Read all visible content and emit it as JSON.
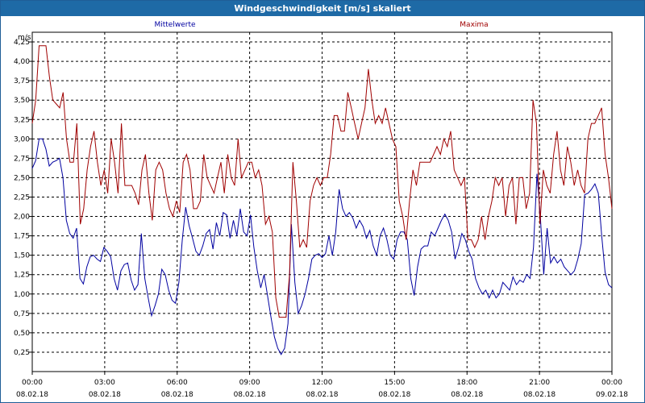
{
  "window": {
    "title": "Windgeschwindigkeit [m/s] skaliert"
  },
  "chart_data": {
    "type": "line",
    "title": "Windgeschwindigkeit [m/s] skaliert",
    "ylabel": "m/s",
    "ylim": [
      0,
      4.375
    ],
    "yticks": [
      0.25,
      0.5,
      0.75,
      1.0,
      1.25,
      1.5,
      1.75,
      2.0,
      2.25,
      2.5,
      2.75,
      3.0,
      3.25,
      3.5,
      3.75,
      4.0,
      4.25
    ],
    "ytick_labels": [
      "0,25",
      "0,50",
      "0,75",
      "1,00",
      "1,25",
      "1,50",
      "1,75",
      "2,00",
      "2,25",
      "2,50",
      "2,75",
      "3,00",
      "3,25",
      "3,50",
      "3,75",
      "4,00",
      "4,25"
    ],
    "xlim_hours": [
      0,
      24
    ],
    "xticks": [
      {
        "h": 0,
        "time": "00:00",
        "date": "08.02.18"
      },
      {
        "h": 3,
        "time": "03:00",
        "date": "08.02.18"
      },
      {
        "h": 6,
        "time": "06:00",
        "date": "08.02.18"
      },
      {
        "h": 9,
        "time": "09:00",
        "date": "08.02.18"
      },
      {
        "h": 12,
        "time": "12:00",
        "date": "08.02.18"
      },
      {
        "h": 15,
        "time": "15:00",
        "date": "08.02.18"
      },
      {
        "h": 18,
        "time": "18:00",
        "date": "08.02.18"
      },
      {
        "h": 21,
        "time": "21:00",
        "date": "08.02.18"
      },
      {
        "h": 24,
        "time": "00:00",
        "date": "09.02.18"
      }
    ],
    "grid": true,
    "series": [
      {
        "name": "Mittelwerte",
        "color": "#0000a0",
        "values": [
          2.62,
          2.72,
          3.0,
          3.0,
          2.87,
          2.65,
          2.7,
          2.72,
          2.75,
          2.5,
          1.95,
          1.78,
          1.72,
          1.85,
          1.2,
          1.13,
          1.35,
          1.48,
          1.5,
          1.45,
          1.42,
          1.6,
          1.55,
          1.48,
          1.2,
          1.05,
          1.3,
          1.38,
          1.4,
          1.18,
          1.05,
          1.12,
          1.78,
          1.2,
          0.95,
          0.72,
          0.85,
          1.0,
          1.32,
          1.25,
          1.05,
          0.92,
          0.88,
          1.15,
          1.7,
          2.12,
          1.88,
          1.72,
          1.55,
          1.5,
          1.62,
          1.78,
          1.83,
          1.58,
          1.92,
          1.75,
          2.05,
          2.02,
          1.72,
          1.95,
          1.75,
          2.1,
          1.8,
          1.75,
          2.02,
          1.6,
          1.3,
          1.08,
          1.25,
          0.98,
          0.7,
          0.45,
          0.3,
          0.22,
          0.3,
          0.62,
          1.9,
          1.15,
          0.75,
          0.85,
          1.0,
          1.2,
          1.45,
          1.5,
          1.52,
          1.47,
          1.52,
          1.75,
          1.5,
          1.8,
          2.35,
          2.1,
          2.0,
          2.05,
          1.98,
          1.85,
          1.95,
          1.87,
          1.72,
          1.82,
          1.62,
          1.5,
          1.75,
          1.85,
          1.7,
          1.5,
          1.45,
          1.7,
          1.8,
          1.8,
          1.7,
          1.2,
          0.98,
          1.35,
          1.58,
          1.62,
          1.62,
          1.8,
          1.75,
          1.85,
          1.95,
          2.03,
          1.95,
          1.8,
          1.45,
          1.6,
          1.78,
          1.7,
          1.55,
          1.45,
          1.2,
          1.08,
          1.0,
          1.05,
          0.95,
          1.05,
          0.95,
          1.0,
          1.15,
          1.1,
          1.05,
          1.22,
          1.12,
          1.18,
          1.15,
          1.25,
          1.2,
          1.6,
          2.55,
          2.0,
          1.25,
          1.85,
          1.4,
          1.48,
          1.4,
          1.45,
          1.35,
          1.3,
          1.25,
          1.3,
          1.45,
          1.65,
          2.28,
          2.3,
          2.35,
          2.42,
          2.3,
          1.75,
          1.28,
          1.12,
          1.08
        ]
      },
      {
        "name": "Maxima",
        "color": "#a00000",
        "values": [
          3.2,
          3.5,
          4.2,
          4.2,
          4.2,
          3.8,
          3.5,
          3.45,
          3.4,
          3.6,
          3.0,
          2.7,
          2.7,
          3.2,
          1.9,
          2.1,
          2.6,
          2.9,
          3.1,
          2.7,
          2.4,
          2.6,
          2.3,
          3.0,
          2.7,
          2.3,
          3.2,
          2.4,
          2.4,
          2.4,
          2.3,
          2.15,
          2.6,
          2.8,
          2.3,
          1.95,
          2.6,
          2.7,
          2.6,
          2.3,
          2.1,
          2.0,
          2.2,
          2.05,
          2.7,
          2.8,
          2.6,
          2.1,
          2.1,
          2.2,
          2.8,
          2.5,
          2.4,
          2.3,
          2.5,
          2.7,
          2.3,
          2.8,
          2.5,
          2.4,
          3.0,
          2.5,
          2.6,
          2.7,
          2.7,
          2.5,
          2.6,
          2.4,
          1.9,
          2.0,
          1.8,
          0.95,
          0.7,
          0.7,
          0.7,
          1.25,
          2.7,
          2.2,
          1.6,
          1.7,
          1.6,
          2.2,
          2.4,
          2.5,
          2.4,
          2.5,
          2.5,
          2.8,
          3.3,
          3.3,
          3.1,
          3.1,
          3.6,
          3.4,
          3.2,
          3.0,
          3.2,
          3.4,
          3.9,
          3.5,
          3.2,
          3.3,
          3.2,
          3.4,
          3.2,
          3.0,
          2.9,
          2.2,
          2.0,
          1.7,
          2.2,
          2.6,
          2.4,
          2.7,
          2.7,
          2.7,
          2.7,
          2.8,
          2.9,
          2.8,
          3.0,
          2.9,
          3.1,
          2.6,
          2.5,
          2.4,
          2.5,
          1.7,
          1.7,
          1.6,
          1.7,
          2.0,
          1.7,
          2.0,
          2.2,
          2.5,
          2.4,
          2.5,
          2.0,
          2.4,
          2.5,
          1.9,
          2.5,
          2.5,
          2.1,
          2.3,
          3.5,
          3.2,
          1.9,
          2.6,
          2.4,
          2.3,
          2.8,
          3.1,
          2.6,
          2.4,
          2.9,
          2.7,
          2.4,
          2.6,
          2.4,
          2.3,
          3.0,
          3.2,
          3.2,
          3.3,
          3.4,
          2.8,
          2.5,
          2.1
        ]
      }
    ]
  }
}
